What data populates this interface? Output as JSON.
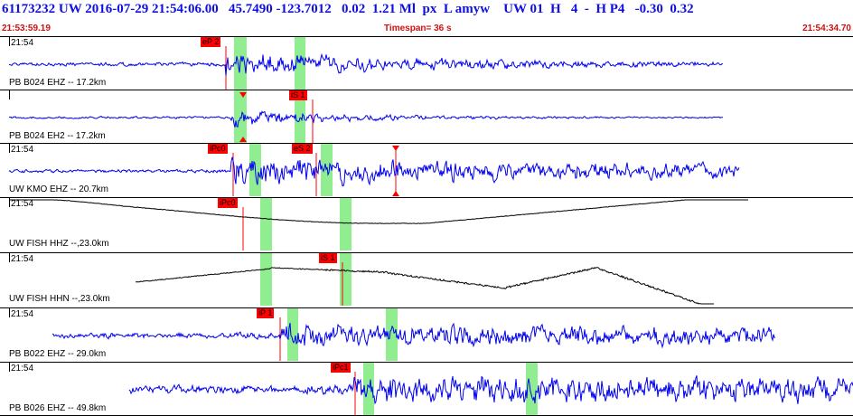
{
  "header": {
    "event_line": "61173232 UW 2016-07-29 21:54:06.00   45.7490 -123.7012   0.02  1.21 Ml  px  L amyw    UW 01  H   4  -  H P4   -0.30  0.32",
    "start_time": "21:53:59.19",
    "timespan": "Timespan=  36 s",
    "end_time": "21:54:34.70"
  },
  "colors": {
    "trace": "#0000ee",
    "trace_alt": "#000000",
    "pick": "#ff0000",
    "window": "#90ee90",
    "header": "#1010e0",
    "subheader": "#d01010"
  },
  "panels": [
    {
      "time": "21:54",
      "label": "PB B024 EHZ -- 17.2km",
      "trace_color": "blue",
      "picks": [
        {
          "text": "eP 2"
        }
      ]
    },
    {
      "time": "21:54",
      "label": "PB B024 EH2 -- 17.2km",
      "trace_color": "blue",
      "picks": [
        {
          "text": "iS 1"
        }
      ]
    },
    {
      "time": "21:54",
      "label": "UW KMO EHZ -- 20.7km",
      "trace_color": "blue",
      "picks": [
        {
          "text": "iPc0"
        },
        {
          "text": "eS 2"
        }
      ]
    },
    {
      "time": "21:54",
      "label": "UW FISH HHZ --,23.0km",
      "trace_color": "black",
      "picks": [
        {
          "text": "iPc0"
        }
      ]
    },
    {
      "time": "21:54",
      "label": "UW FISH HHN --,23.0km",
      "trace_color": "black",
      "picks": [
        {
          "text": "iS 1"
        }
      ]
    },
    {
      "time": "21:54",
      "label": "PB B022 EHZ -- 29.0km",
      "trace_color": "blue",
      "picks": [
        {
          "text": "iP 1"
        }
      ]
    },
    {
      "time": "21:54",
      "label": "PB B026 EHZ -- 49.8km",
      "trace_color": "blue",
      "picks": [
        {
          "text": "iPc1"
        }
      ]
    }
  ]
}
